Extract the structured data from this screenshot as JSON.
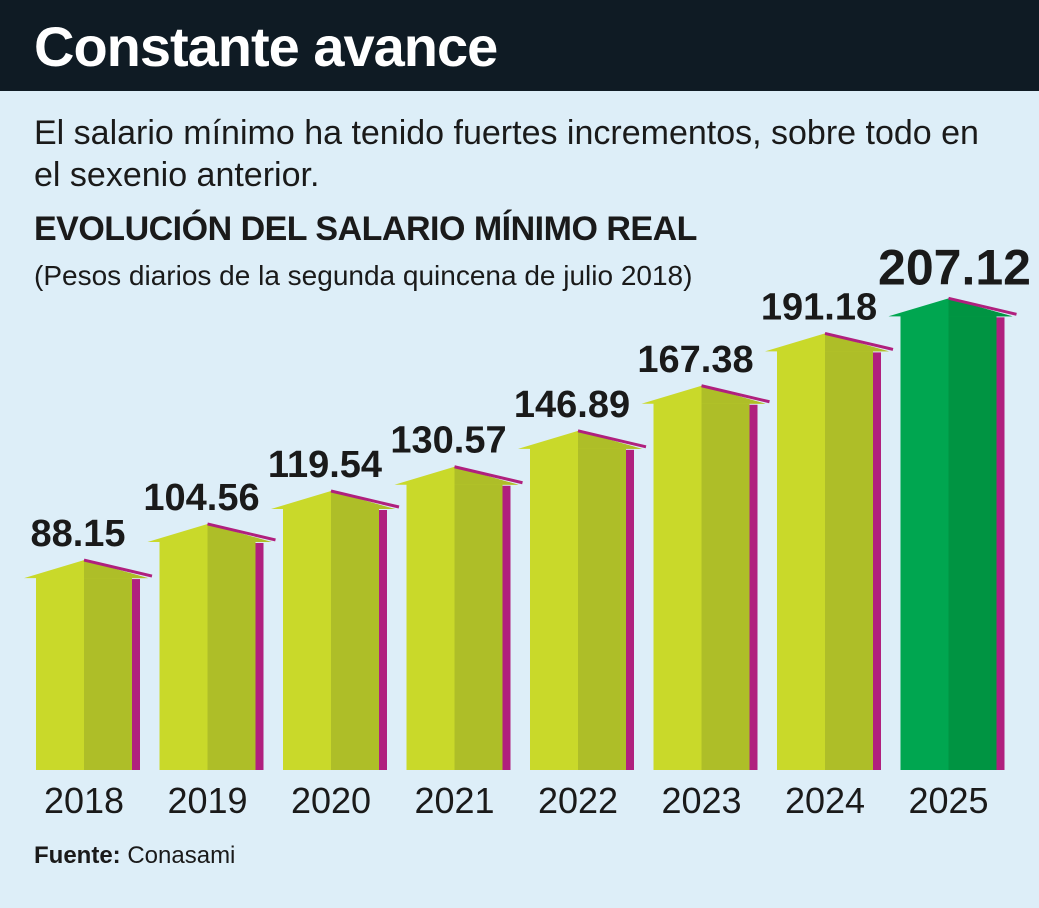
{
  "header": {
    "title": "Constante avance",
    "subtitle": "El salario mínimo ha tenido fuertes incrementos, sobre todo en el sexenio anterior."
  },
  "source": {
    "label": "Fuente:",
    "value": "Conasami"
  },
  "colors": {
    "bar_main": "#c9d92a",
    "bar_shade": "#a9b928",
    "bar_highlight": "#00a650",
    "bar_highlight_shade": "#00913f",
    "side_strip": "#b0207e",
    "background": "#ddeef8",
    "header_bg": "#0f1b24"
  },
  "chart_data": {
    "type": "bar",
    "title": "EVOLUCIÓN DEL SALARIO MÍNIMO REAL",
    "subtitle": "(Pesos diarios de la segunda quincena de julio 2018)",
    "categories": [
      "2018",
      "2019",
      "2020",
      "2021",
      "2022",
      "2023",
      "2024",
      "2025"
    ],
    "values": [
      88.15,
      104.56,
      119.54,
      130.57,
      146.89,
      167.38,
      191.18,
      207.12
    ],
    "value_labels": [
      "88.15",
      "104.56",
      "119.54",
      "130.57",
      "146.89",
      "167.38",
      "191.18",
      "207.12"
    ],
    "highlight": "2025",
    "xlabel": "",
    "ylabel": "",
    "ylim": [
      0,
      207.12
    ],
    "grid": false
  }
}
